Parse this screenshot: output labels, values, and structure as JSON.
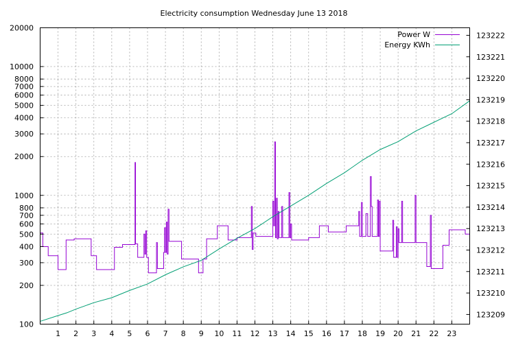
{
  "chart_data": {
    "type": "line",
    "title": "Electricity consumption Wednesday June 13 2018",
    "x_ticks": [
      1,
      2,
      3,
      4,
      5,
      6,
      7,
      8,
      9,
      10,
      11,
      12,
      13,
      14,
      15,
      16,
      17,
      18,
      19,
      20,
      21,
      22,
      23
    ],
    "xlim": [
      0,
      24
    ],
    "y_left": {
      "scale": "log",
      "ylim": [
        100,
        20000
      ],
      "ticks": [
        100,
        200,
        300,
        400,
        500,
        600,
        700,
        800,
        1000,
        2000,
        3000,
        4000,
        5000,
        6000,
        7000,
        8000,
        10000,
        20000
      ]
    },
    "y_right": {
      "ylim": [
        123208.55,
        123222.35
      ],
      "ticks": [
        123209,
        123210,
        123211,
        123212,
        123213,
        123214,
        123215,
        123216,
        123217,
        123218,
        123219,
        123220,
        123221,
        123222
      ]
    },
    "grid": true,
    "legend_position": "top-right",
    "series": [
      {
        "name": "Power W",
        "axis": "left",
        "color": "#9400d3",
        "points": [
          [
            0,
            510
          ],
          [
            0.15,
            510
          ],
          [
            0.15,
            400
          ],
          [
            0.45,
            400
          ],
          [
            0.45,
            340
          ],
          [
            1.0,
            340
          ],
          [
            1.0,
            265
          ],
          [
            1.45,
            265
          ],
          [
            1.45,
            450
          ],
          [
            1.9,
            450
          ],
          [
            1.9,
            460
          ],
          [
            2.85,
            460
          ],
          [
            2.85,
            340
          ],
          [
            3.15,
            340
          ],
          [
            3.15,
            265
          ],
          [
            4.15,
            265
          ],
          [
            4.15,
            395
          ],
          [
            4.6,
            395
          ],
          [
            4.6,
            415
          ],
          [
            5.3,
            415
          ],
          [
            5.3,
            1800
          ],
          [
            5.33,
            1800
          ],
          [
            5.33,
            420
          ],
          [
            5.45,
            420
          ],
          [
            5.45,
            330
          ],
          [
            5.8,
            330
          ],
          [
            5.8,
            500
          ],
          [
            5.85,
            500
          ],
          [
            5.85,
            350
          ],
          [
            5.9,
            350
          ],
          [
            5.9,
            530
          ],
          [
            5.95,
            530
          ],
          [
            5.95,
            330
          ],
          [
            6.05,
            330
          ],
          [
            6.05,
            250
          ],
          [
            6.5,
            250
          ],
          [
            6.5,
            430
          ],
          [
            6.55,
            430
          ],
          [
            6.55,
            270
          ],
          [
            6.9,
            270
          ],
          [
            6.9,
            360
          ],
          [
            6.95,
            360
          ],
          [
            6.95,
            560
          ],
          [
            7.0,
            560
          ],
          [
            7.0,
            360
          ],
          [
            7.05,
            360
          ],
          [
            7.05,
            620
          ],
          [
            7.1,
            620
          ],
          [
            7.1,
            350
          ],
          [
            7.15,
            350
          ],
          [
            7.15,
            780
          ],
          [
            7.2,
            780
          ],
          [
            7.2,
            440
          ],
          [
            7.9,
            440
          ],
          [
            7.9,
            320
          ],
          [
            8.85,
            320
          ],
          [
            8.85,
            250
          ],
          [
            9.1,
            250
          ],
          [
            9.1,
            320
          ],
          [
            9.3,
            320
          ],
          [
            9.3,
            460
          ],
          [
            9.9,
            460
          ],
          [
            9.9,
            580
          ],
          [
            10.5,
            580
          ],
          [
            10.5,
            450
          ],
          [
            11.0,
            450
          ],
          [
            11.0,
            470
          ],
          [
            11.8,
            470
          ],
          [
            11.8,
            820
          ],
          [
            11.85,
            820
          ],
          [
            11.85,
            380
          ],
          [
            11.9,
            380
          ],
          [
            11.9,
            510
          ],
          [
            12.05,
            510
          ],
          [
            12.05,
            480
          ],
          [
            13.0,
            480
          ],
          [
            13.0,
            900
          ],
          [
            13.05,
            900
          ],
          [
            13.05,
            580
          ],
          [
            13.1,
            580
          ],
          [
            13.1,
            2600
          ],
          [
            13.15,
            2600
          ],
          [
            13.15,
            470
          ],
          [
            13.2,
            470
          ],
          [
            13.2,
            950
          ],
          [
            13.25,
            950
          ],
          [
            13.25,
            460
          ],
          [
            13.3,
            460
          ],
          [
            13.3,
            750
          ],
          [
            13.35,
            750
          ],
          [
            13.35,
            470
          ],
          [
            13.5,
            470
          ],
          [
            13.5,
            820
          ],
          [
            13.55,
            820
          ],
          [
            13.55,
            470
          ],
          [
            13.9,
            470
          ],
          [
            13.9,
            1050
          ],
          [
            13.95,
            1050
          ],
          [
            13.95,
            470
          ],
          [
            14.0,
            470
          ],
          [
            14.0,
            600
          ],
          [
            14.05,
            600
          ],
          [
            14.05,
            450
          ],
          [
            15.0,
            450
          ],
          [
            15.0,
            470
          ],
          [
            15.6,
            470
          ],
          [
            15.6,
            580
          ],
          [
            16.1,
            580
          ],
          [
            16.1,
            520
          ],
          [
            17.1,
            520
          ],
          [
            17.1,
            580
          ],
          [
            17.8,
            580
          ],
          [
            17.8,
            750
          ],
          [
            17.85,
            750
          ],
          [
            17.85,
            480
          ],
          [
            17.95,
            480
          ],
          [
            17.95,
            880
          ],
          [
            18.0,
            880
          ],
          [
            18.0,
            480
          ],
          [
            18.2,
            480
          ],
          [
            18.2,
            720
          ],
          [
            18.3,
            720
          ],
          [
            18.3,
            480
          ],
          [
            18.45,
            480
          ],
          [
            18.45,
            1400
          ],
          [
            18.5,
            1400
          ],
          [
            18.5,
            820
          ],
          [
            18.55,
            820
          ],
          [
            18.55,
            480
          ],
          [
            18.85,
            480
          ],
          [
            18.85,
            920
          ],
          [
            18.9,
            920
          ],
          [
            18.9,
            480
          ],
          [
            18.95,
            480
          ],
          [
            18.95,
            900
          ],
          [
            19.0,
            900
          ],
          [
            19.0,
            370
          ],
          [
            19.7,
            370
          ],
          [
            19.7,
            640
          ],
          [
            19.75,
            640
          ],
          [
            19.75,
            330
          ],
          [
            19.9,
            330
          ],
          [
            19.9,
            570
          ],
          [
            19.95,
            570
          ],
          [
            19.95,
            330
          ],
          [
            20.0,
            330
          ],
          [
            20.0,
            550
          ],
          [
            20.05,
            550
          ],
          [
            20.05,
            430
          ],
          [
            20.2,
            430
          ],
          [
            20.2,
            900
          ],
          [
            20.25,
            900
          ],
          [
            20.25,
            430
          ],
          [
            20.95,
            430
          ],
          [
            20.95,
            1000
          ],
          [
            21.0,
            1000
          ],
          [
            21.0,
            430
          ],
          [
            21.6,
            430
          ],
          [
            21.6,
            280
          ],
          [
            21.8,
            280
          ],
          [
            21.8,
            700
          ],
          [
            21.85,
            700
          ],
          [
            21.85,
            270
          ],
          [
            22.5,
            270
          ],
          [
            22.5,
            410
          ],
          [
            22.85,
            410
          ],
          [
            22.85,
            540
          ],
          [
            23.75,
            540
          ],
          [
            23.75,
            500
          ],
          [
            24,
            500
          ]
        ]
      },
      {
        "name": "Energy KWh",
        "axis": "right",
        "color": "#009e73",
        "points": [
          [
            0,
            123208.68
          ],
          [
            1,
            123208.95
          ],
          [
            1.5,
            123209.08
          ],
          [
            2,
            123209.25
          ],
          [
            3,
            123209.55
          ],
          [
            4,
            123209.78
          ],
          [
            5,
            123210.12
          ],
          [
            6,
            123210.42
          ],
          [
            7,
            123210.85
          ],
          [
            8,
            123211.22
          ],
          [
            9,
            123211.52
          ],
          [
            10,
            123212.05
          ],
          [
            11,
            123212.55
          ],
          [
            12,
            123213.0
          ],
          [
            13,
            123213.55
          ],
          [
            14,
            123214.05
          ],
          [
            15,
            123214.55
          ],
          [
            16,
            123215.1
          ],
          [
            17,
            123215.6
          ],
          [
            18,
            123216.18
          ],
          [
            19,
            123216.68
          ],
          [
            20,
            123217.05
          ],
          [
            21,
            123217.55
          ],
          [
            22,
            123217.95
          ],
          [
            23,
            123218.35
          ],
          [
            24,
            123218.95
          ]
        ]
      }
    ]
  }
}
